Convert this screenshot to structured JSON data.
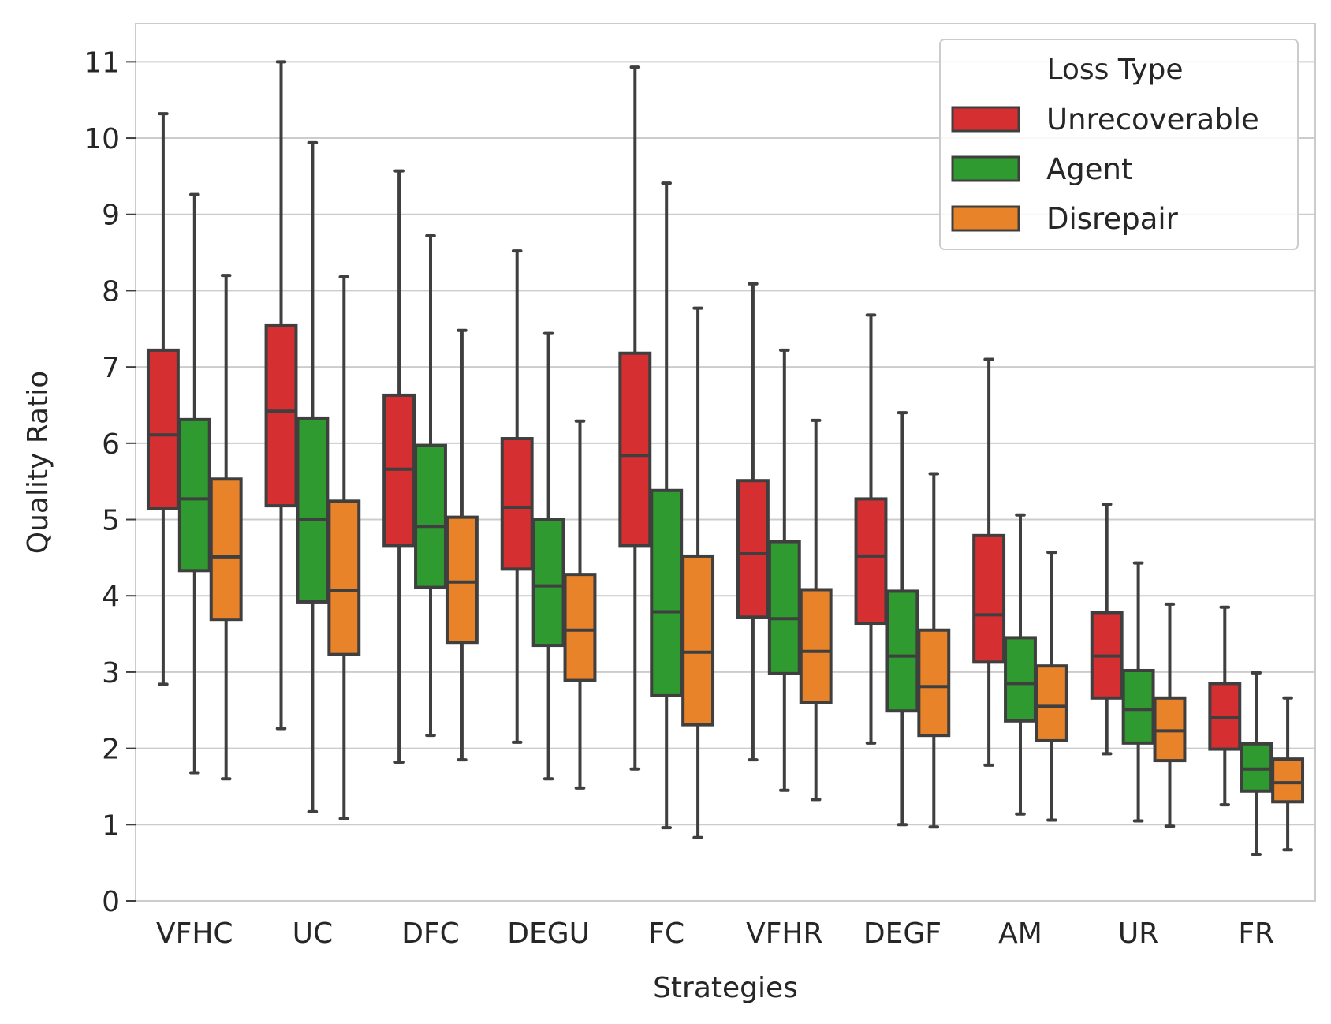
{
  "chart_data": {
    "type": "boxplot",
    "xlabel": "Strategies",
    "ylabel": "Quality Ratio",
    "ylim": [
      0,
      11.5
    ],
    "yticks": [
      0,
      1,
      2,
      3,
      4,
      5,
      6,
      7,
      8,
      9,
      10,
      11
    ],
    "grid": true,
    "legend": {
      "title": "Loss Type",
      "position": "top-right"
    },
    "categories": [
      "VFHC",
      "UC",
      "DFC",
      "DEGU",
      "FC",
      "VFHR",
      "DEGF",
      "AM",
      "UR",
      "FR"
    ],
    "series": [
      {
        "name": "Unrecoverable",
        "color": "#d62f32",
        "boxes": [
          {
            "whislo": 2.84,
            "q1": 5.14,
            "med": 6.11,
            "q3": 7.22,
            "whishi": 10.32
          },
          {
            "whislo": 2.26,
            "q1": 5.18,
            "med": 6.42,
            "q3": 7.54,
            "whishi": 11.0
          },
          {
            "whislo": 1.82,
            "q1": 4.66,
            "med": 5.66,
            "q3": 6.63,
            "whishi": 9.57
          },
          {
            "whislo": 2.08,
            "q1": 4.35,
            "med": 5.16,
            "q3": 6.06,
            "whishi": 8.52
          },
          {
            "whislo": 1.73,
            "q1": 4.66,
            "med": 5.84,
            "q3": 7.18,
            "whishi": 10.93
          },
          {
            "whislo": 1.85,
            "q1": 3.72,
            "med": 4.55,
            "q3": 5.51,
            "whishi": 8.09
          },
          {
            "whislo": 2.07,
            "q1": 3.64,
            "med": 4.52,
            "q3": 5.27,
            "whishi": 7.68
          },
          {
            "whislo": 1.78,
            "q1": 3.13,
            "med": 3.75,
            "q3": 4.79,
            "whishi": 7.1
          },
          {
            "whislo": 1.93,
            "q1": 2.66,
            "med": 3.21,
            "q3": 3.78,
            "whishi": 5.2
          },
          {
            "whislo": 1.26,
            "q1": 1.99,
            "med": 2.41,
            "q3": 2.85,
            "whishi": 3.85
          }
        ]
      },
      {
        "name": "Agent",
        "color": "#2f9a2f",
        "boxes": [
          {
            "whislo": 1.68,
            "q1": 4.33,
            "med": 5.27,
            "q3": 6.31,
            "whishi": 9.26
          },
          {
            "whislo": 1.17,
            "q1": 3.92,
            "med": 5.0,
            "q3": 6.33,
            "whishi": 9.94
          },
          {
            "whislo": 2.17,
            "q1": 4.11,
            "med": 4.91,
            "q3": 5.97,
            "whishi": 8.72
          },
          {
            "whislo": 1.6,
            "q1": 3.35,
            "med": 4.13,
            "q3": 5.0,
            "whishi": 7.44
          },
          {
            "whislo": 0.96,
            "q1": 2.69,
            "med": 3.79,
            "q3": 5.38,
            "whishi": 9.41
          },
          {
            "whislo": 1.45,
            "q1": 2.98,
            "med": 3.7,
            "q3": 4.71,
            "whishi": 7.22
          },
          {
            "whislo": 1.0,
            "q1": 2.49,
            "med": 3.21,
            "q3": 4.06,
            "whishi": 6.4
          },
          {
            "whislo": 1.14,
            "q1": 2.36,
            "med": 2.85,
            "q3": 3.45,
            "whishi": 5.06
          },
          {
            "whislo": 1.05,
            "q1": 2.07,
            "med": 2.51,
            "q3": 3.02,
            "whishi": 4.43
          },
          {
            "whislo": 0.61,
            "q1": 1.44,
            "med": 1.73,
            "q3": 2.06,
            "whishi": 2.99
          }
        ]
      },
      {
        "name": "Disrepair",
        "color": "#e8832a",
        "boxes": [
          {
            "whislo": 1.6,
            "q1": 3.69,
            "med": 4.51,
            "q3": 5.53,
            "whishi": 8.2
          },
          {
            "whislo": 1.08,
            "q1": 3.23,
            "med": 4.07,
            "q3": 5.24,
            "whishi": 8.18
          },
          {
            "whislo": 1.85,
            "q1": 3.39,
            "med": 4.18,
            "q3": 5.03,
            "whishi": 7.48
          },
          {
            "whislo": 1.48,
            "q1": 2.89,
            "med": 3.55,
            "q3": 4.28,
            "whishi": 6.29
          },
          {
            "whislo": 0.83,
            "q1": 2.31,
            "med": 3.26,
            "q3": 4.52,
            "whishi": 7.77
          },
          {
            "whislo": 1.33,
            "q1": 2.6,
            "med": 3.27,
            "q3": 4.08,
            "whishi": 6.3
          },
          {
            "whislo": 0.97,
            "q1": 2.17,
            "med": 2.81,
            "q3": 3.55,
            "whishi": 5.6
          },
          {
            "whislo": 1.06,
            "q1": 2.1,
            "med": 2.55,
            "q3": 3.08,
            "whishi": 4.57
          },
          {
            "whislo": 0.98,
            "q1": 1.84,
            "med": 2.23,
            "q3": 2.66,
            "whishi": 3.89
          },
          {
            "whislo": 0.67,
            "q1": 1.3,
            "med": 1.55,
            "q3": 1.86,
            "whishi": 2.66
          }
        ]
      }
    ]
  }
}
